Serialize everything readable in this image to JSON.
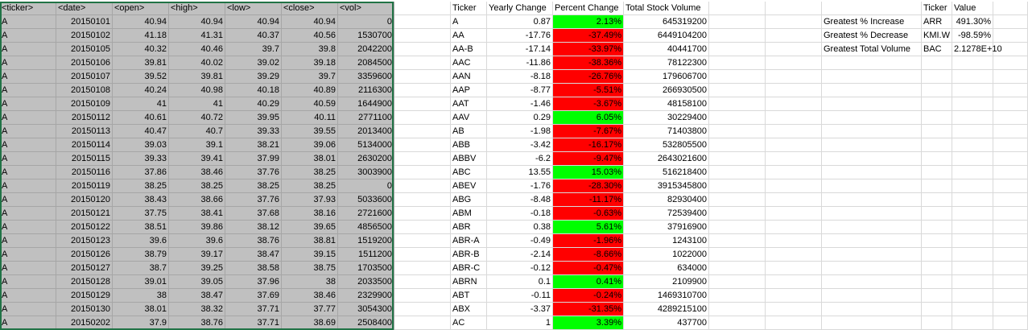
{
  "raw": {
    "headers": [
      "<ticker>",
      "<date>",
      "<open>",
      "<high>",
      "<low>",
      "<close>",
      "<vol>"
    ],
    "rows": [
      [
        "A",
        "20150101",
        "40.94",
        "40.94",
        "40.94",
        "40.94",
        "0"
      ],
      [
        "A",
        "20150102",
        "41.18",
        "41.31",
        "40.37",
        "40.56",
        "1530700"
      ],
      [
        "A",
        "20150105",
        "40.32",
        "40.46",
        "39.7",
        "39.8",
        "2042200"
      ],
      [
        "A",
        "20150106",
        "39.81",
        "40.02",
        "39.02",
        "39.18",
        "2084500"
      ],
      [
        "A",
        "20150107",
        "39.52",
        "39.81",
        "39.29",
        "39.7",
        "3359600"
      ],
      [
        "A",
        "20150108",
        "40.24",
        "40.98",
        "40.18",
        "40.89",
        "2116300"
      ],
      [
        "A",
        "20150109",
        "41",
        "41",
        "40.29",
        "40.59",
        "1644900"
      ],
      [
        "A",
        "20150112",
        "40.61",
        "40.72",
        "39.95",
        "40.11",
        "2771100"
      ],
      [
        "A",
        "20150113",
        "40.47",
        "40.7",
        "39.33",
        "39.55",
        "2013400"
      ],
      [
        "A",
        "20150114",
        "39.03",
        "39.1",
        "38.21",
        "39.06",
        "5134000"
      ],
      [
        "A",
        "20150115",
        "39.33",
        "39.41",
        "37.99",
        "38.01",
        "2630200"
      ],
      [
        "A",
        "20150116",
        "37.86",
        "38.46",
        "37.76",
        "38.25",
        "3003900"
      ],
      [
        "A",
        "20150119",
        "38.25",
        "38.25",
        "38.25",
        "38.25",
        "0"
      ],
      [
        "A",
        "20150120",
        "38.43",
        "38.66",
        "37.76",
        "37.93",
        "5033600"
      ],
      [
        "A",
        "20150121",
        "37.75",
        "38.41",
        "37.68",
        "38.16",
        "2721600"
      ],
      [
        "A",
        "20150122",
        "38.51",
        "39.86",
        "38.12",
        "39.65",
        "4856500"
      ],
      [
        "A",
        "20150123",
        "39.6",
        "39.6",
        "38.76",
        "38.81",
        "1519200"
      ],
      [
        "A",
        "20150126",
        "38.79",
        "39.17",
        "38.47",
        "39.15",
        "1511200"
      ],
      [
        "A",
        "20150127",
        "38.7",
        "39.25",
        "38.58",
        "38.75",
        "1703500"
      ],
      [
        "A",
        "20150128",
        "39.01",
        "39.05",
        "37.96",
        "38",
        "2033500"
      ],
      [
        "A",
        "20150129",
        "38",
        "38.47",
        "37.69",
        "38.46",
        "2329900"
      ],
      [
        "A",
        "20150130",
        "38.01",
        "38.32",
        "37.71",
        "37.77",
        "3054300"
      ],
      [
        "A",
        "20150202",
        "37.9",
        "38.76",
        "37.71",
        "38.69",
        "2508400"
      ]
    ]
  },
  "summary": {
    "headers": [
      "Ticker",
      "Yearly Change",
      "Percent Change",
      "Total Stock Volume"
    ],
    "rows": [
      {
        "ticker": "A",
        "change": "0.87",
        "percent": "2.13%",
        "volume": "645319200",
        "status": "pos"
      },
      {
        "ticker": "AA",
        "change": "-17.76",
        "percent": "-37.49%",
        "volume": "6449104200",
        "status": "neg"
      },
      {
        "ticker": "AA-B",
        "change": "-17.14",
        "percent": "-33.97%",
        "volume": "40441700",
        "status": "neg"
      },
      {
        "ticker": "AAC",
        "change": "-11.86",
        "percent": "-38.36%",
        "volume": "78122300",
        "status": "neg"
      },
      {
        "ticker": "AAN",
        "change": "-8.18",
        "percent": "-26.76%",
        "volume": "179606700",
        "status": "neg"
      },
      {
        "ticker": "AAP",
        "change": "-8.77",
        "percent": "-5.51%",
        "volume": "266930500",
        "status": "neg"
      },
      {
        "ticker": "AAT",
        "change": "-1.46",
        "percent": "-3.67%",
        "volume": "48158100",
        "status": "neg"
      },
      {
        "ticker": "AAV",
        "change": "0.29",
        "percent": "6.05%",
        "volume": "30229400",
        "status": "pos"
      },
      {
        "ticker": "AB",
        "change": "-1.98",
        "percent": "-7.67%",
        "volume": "71403800",
        "status": "neg"
      },
      {
        "ticker": "ABB",
        "change": "-3.42",
        "percent": "-16.17%",
        "volume": "532805500",
        "status": "neg"
      },
      {
        "ticker": "ABBV",
        "change": "-6.2",
        "percent": "-9.47%",
        "volume": "2643021600",
        "status": "neg"
      },
      {
        "ticker": "ABC",
        "change": "13.55",
        "percent": "15.03%",
        "volume": "516218400",
        "status": "pos"
      },
      {
        "ticker": "ABEV",
        "change": "-1.76",
        "percent": "-28.30%",
        "volume": "3915345800",
        "status": "neg"
      },
      {
        "ticker": "ABG",
        "change": "-8.48",
        "percent": "-11.17%",
        "volume": "82930400",
        "status": "neg"
      },
      {
        "ticker": "ABM",
        "change": "-0.18",
        "percent": "-0.63%",
        "volume": "72539400",
        "status": "neg"
      },
      {
        "ticker": "ABR",
        "change": "0.38",
        "percent": "5.61%",
        "volume": "37916900",
        "status": "pos"
      },
      {
        "ticker": "ABR-A",
        "change": "-0.49",
        "percent": "-1.96%",
        "volume": "1243100",
        "status": "neg"
      },
      {
        "ticker": "ABR-B",
        "change": "-2.14",
        "percent": "-8.66%",
        "volume": "1022000",
        "status": "neg"
      },
      {
        "ticker": "ABR-C",
        "change": "-0.12",
        "percent": "-0.47%",
        "volume": "634000",
        "status": "neg"
      },
      {
        "ticker": "ABRN",
        "change": "0.1",
        "percent": "0.41%",
        "volume": "2109900",
        "status": "pos"
      },
      {
        "ticker": "ABT",
        "change": "-0.11",
        "percent": "-0.24%",
        "volume": "1469310700",
        "status": "neg"
      },
      {
        "ticker": "ABX",
        "change": "-3.37",
        "percent": "-31.35%",
        "volume": "4289215100",
        "status": "neg"
      },
      {
        "ticker": "AC",
        "change": "1",
        "percent": "3.39%",
        "volume": "437700",
        "status": "pos"
      }
    ]
  },
  "greatest": {
    "headers": [
      "Ticker",
      "Value"
    ],
    "rows": [
      {
        "label": "Greatest % Increase",
        "ticker": "ARR",
        "value": "491.30%"
      },
      {
        "label": "Greatest % Decrease",
        "ticker": "KMI.W",
        "value": "-98.59%"
      },
      {
        "label": "Greatest Total Volume",
        "ticker": "BAC",
        "value": "2.1278E+10"
      }
    ]
  },
  "colors": {
    "positive": "#00ff00",
    "negative": "#ff0000",
    "raw_fill": "#c0c0c0",
    "selection": "#217346"
  }
}
